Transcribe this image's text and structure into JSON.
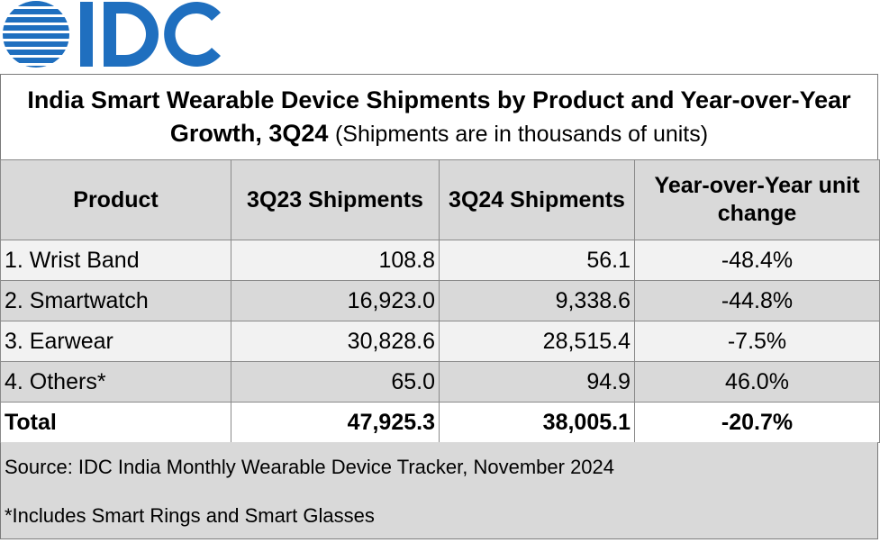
{
  "logo": {
    "text": "IDC",
    "color": "#1f6fbf"
  },
  "title": {
    "main": "India Smart Wearable Device Shipments by Product and Year-over-Year Growth, 3Q24",
    "note": "(Shipments are in thousands of units)"
  },
  "table": {
    "headers": {
      "product": "Product",
      "q3_23": "3Q23 Shipments",
      "q3_24": "3Q24 Shipments",
      "yoy": "Year-over-Year unit change"
    },
    "rows": [
      {
        "product": "1. Wrist Band",
        "q3_23": "108.8",
        "q3_24": "56.1",
        "yoy": "-48.4%"
      },
      {
        "product": "2. Smartwatch",
        "q3_23": "16,923.0",
        "q3_24": "9,338.6",
        "yoy": "-44.8%"
      },
      {
        "product": "3. Earwear",
        "q3_23": "30,828.6",
        "q3_24": "28,515.4",
        "yoy": "-7.5%"
      },
      {
        "product": "4. Others*",
        "q3_23": "65.0",
        "q3_24": "94.9",
        "yoy": "46.0%"
      }
    ],
    "total": {
      "product": "Total",
      "q3_23": "47,925.3",
      "q3_24": "38,005.1",
      "yoy": "-20.7%"
    }
  },
  "footer": {
    "source": "Source: IDC India Monthly Wearable Device Tracker, November 2024",
    "footnote": "*Includes Smart Rings and Smart Glasses"
  },
  "chart_data": {
    "type": "table",
    "title": "India Smart Wearable Device Shipments by Product and Year-over-Year Growth, 3Q24",
    "subtitle": "(Shipments are in thousands of units)",
    "columns": [
      "Product",
      "3Q23 Shipments",
      "3Q24 Shipments",
      "Year-over-Year unit change"
    ],
    "categories": [
      "1. Wrist Band",
      "2. Smartwatch",
      "3. Earwear",
      "4. Others*",
      "Total"
    ],
    "series": [
      {
        "name": "3Q23 Shipments",
        "values": [
          108.8,
          16923.0,
          30828.6,
          65.0,
          47925.3
        ]
      },
      {
        "name": "3Q24 Shipments",
        "values": [
          56.1,
          9338.6,
          28515.4,
          94.9,
          38005.1
        ]
      },
      {
        "name": "Year-over-Year unit change",
        "values": [
          -48.4,
          -44.8,
          -7.5,
          46.0,
          -20.7
        ]
      }
    ]
  }
}
